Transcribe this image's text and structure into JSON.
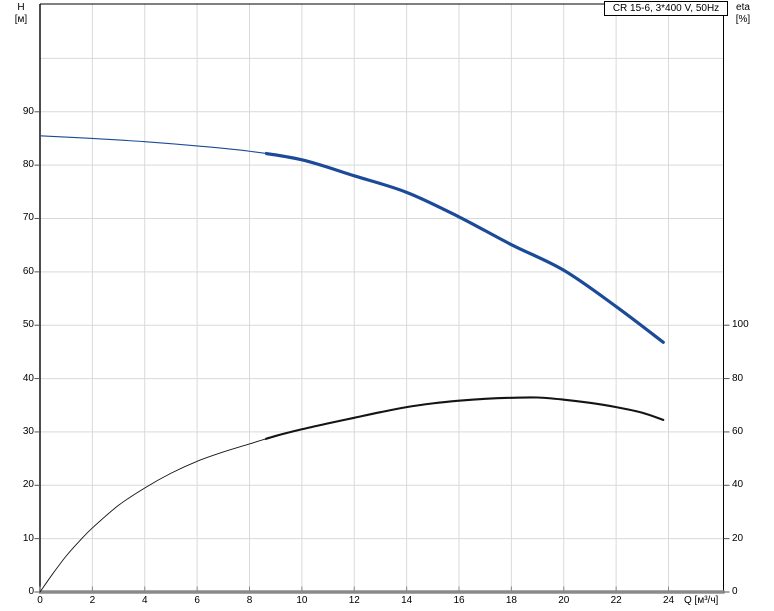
{
  "chart_data": {
    "type": "line",
    "title": "CR 15-6, 3*400 V, 50Hz",
    "grid": true,
    "legend": "none",
    "x_axis": {
      "label": "Q [м³/ч]",
      "min": 0,
      "max": 26.1,
      "tick_step": 2,
      "ticks": [
        0,
        2,
        4,
        6,
        8,
        10,
        12,
        14,
        16,
        18,
        20,
        22,
        24
      ]
    },
    "y_axis_left": {
      "label": "H",
      "unit": "[м]",
      "min": 0,
      "max": 110.2,
      "tick_step": 10,
      "ticks": [
        0,
        10,
        20,
        30,
        40,
        50,
        60,
        70,
        80,
        90
      ]
    },
    "y_axis_right": {
      "label": "eta",
      "unit": "[%]",
      "min": 0,
      "max": 220.4,
      "tick_step": 20,
      "ticks": [
        0,
        20,
        40,
        60,
        80,
        100
      ]
    },
    "series": [
      {
        "name": "head",
        "axis": "left",
        "color": "#1b4a98",
        "thin_width": 1.1,
        "thick_width": 3.2,
        "thick_from_x": 8.6,
        "points": [
          [
            0,
            85.5
          ],
          [
            2,
            85.0
          ],
          [
            4,
            84.4
          ],
          [
            6,
            83.6
          ],
          [
            8,
            82.6
          ],
          [
            10,
            81.0
          ],
          [
            12,
            78.0
          ],
          [
            14,
            74.9
          ],
          [
            16,
            70.3
          ],
          [
            18,
            65.1
          ],
          [
            20,
            60.3
          ],
          [
            22,
            53.5
          ],
          [
            23.8,
            46.8
          ]
        ]
      },
      {
        "name": "efficiency",
        "axis": "right",
        "color": "#141414",
        "thin_width": 0.9,
        "thick_width": 2.1,
        "thick_from_x": 8.6,
        "points": [
          [
            0,
            0
          ],
          [
            0.5,
            7
          ],
          [
            1,
            13.5
          ],
          [
            1.5,
            19
          ],
          [
            2,
            24
          ],
          [
            3,
            32.5
          ],
          [
            4,
            39
          ],
          [
            5,
            44.5
          ],
          [
            6,
            49
          ],
          [
            7,
            52.5
          ],
          [
            8,
            55.5
          ],
          [
            9,
            58.5
          ],
          [
            10,
            61
          ],
          [
            11,
            63.2
          ],
          [
            12,
            65.3
          ],
          [
            13,
            67.4
          ],
          [
            14,
            69.3
          ],
          [
            15,
            70.7
          ],
          [
            16,
            71.7
          ],
          [
            17,
            72.4
          ],
          [
            18,
            72.8
          ],
          [
            19,
            72.9
          ],
          [
            20,
            72.1
          ],
          [
            21,
            70.9
          ],
          [
            22,
            69.3
          ],
          [
            23,
            67.2
          ],
          [
            23.8,
            64.5
          ]
        ]
      }
    ],
    "colors": {
      "background": "#ffffff",
      "grid": "#d9d9d9",
      "axis_bottom": "#8a8a8a",
      "axis_frame": "#000000",
      "tick": "#555555",
      "x_tick": "#888888",
      "text": "#000000"
    }
  }
}
